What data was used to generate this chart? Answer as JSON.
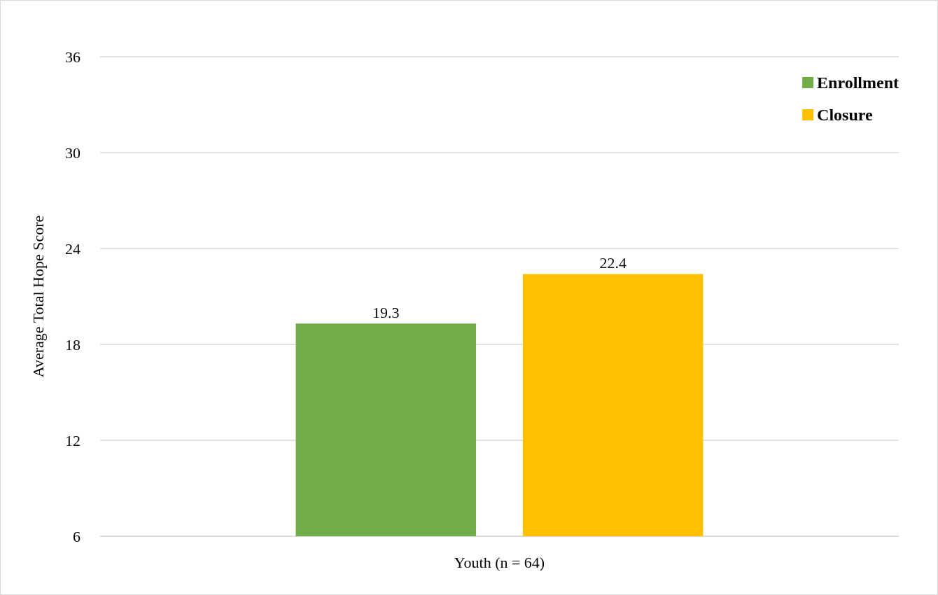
{
  "chart_data": {
    "type": "bar",
    "ylabel": "Average Total Hope Score",
    "categories": [
      "Youth (n = 64)"
    ],
    "series": [
      {
        "name": "Enrollment",
        "color": "#70ad47",
        "values": [
          19.3
        ]
      },
      {
        "name": "Closure",
        "color": "#ffc000",
        "values": [
          22.4
        ]
      }
    ],
    "ylim": [
      6,
      36
    ],
    "yticks": [
      6,
      12,
      18,
      24,
      30,
      36
    ],
    "grid": "y",
    "legend": "top right",
    "data_labels": true
  }
}
